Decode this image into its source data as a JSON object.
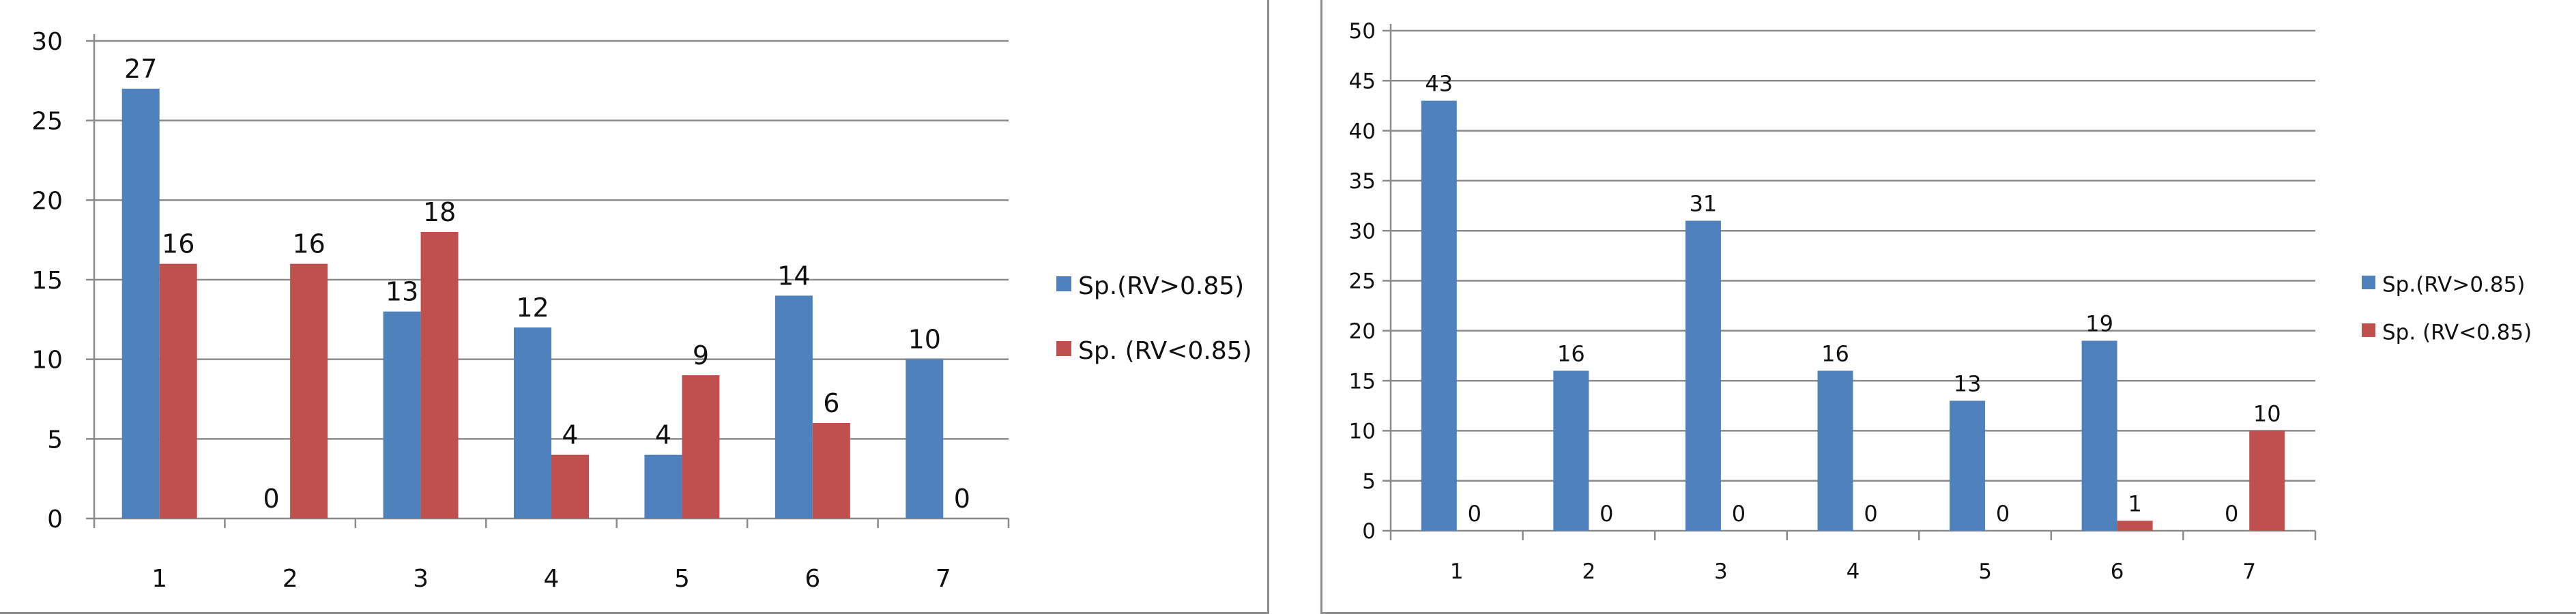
{
  "chart_data": [
    {
      "type": "bar",
      "categories": [
        "1",
        "2",
        "3",
        "4",
        "5",
        "6",
        "7"
      ],
      "series": [
        {
          "name": "Sp.(RV>0.85)",
          "color": "#4f81bd",
          "values": [
            27,
            0,
            13,
            12,
            4,
            14,
            10
          ]
        },
        {
          "name": "Sp. (RV<0.85)",
          "color": "#c0504d",
          "values": [
            16,
            16,
            18,
            4,
            9,
            6,
            0
          ]
        }
      ],
      "ylim": [
        0,
        30
      ],
      "yticks": [
        0,
        5,
        10,
        15,
        20,
        25,
        30
      ],
      "grid": true,
      "data_labels": true,
      "legend": "right"
    },
    {
      "type": "bar",
      "categories": [
        "1",
        "2",
        "3",
        "4",
        "5",
        "6",
        "7"
      ],
      "series": [
        {
          "name": "Sp.(RV>0.85)",
          "color": "#4f81bd",
          "values": [
            43,
            16,
            31,
            16,
            13,
            19,
            0
          ]
        },
        {
          "name": "Sp. (RV<0.85)",
          "color": "#c0504d",
          "values": [
            0,
            0,
            0,
            0,
            0,
            1,
            10
          ]
        }
      ],
      "ylim": [
        0,
        50
      ],
      "yticks": [
        0,
        5,
        10,
        15,
        20,
        25,
        30,
        35,
        40,
        45,
        50
      ],
      "grid": true,
      "data_labels": true,
      "legend": "right"
    }
  ]
}
